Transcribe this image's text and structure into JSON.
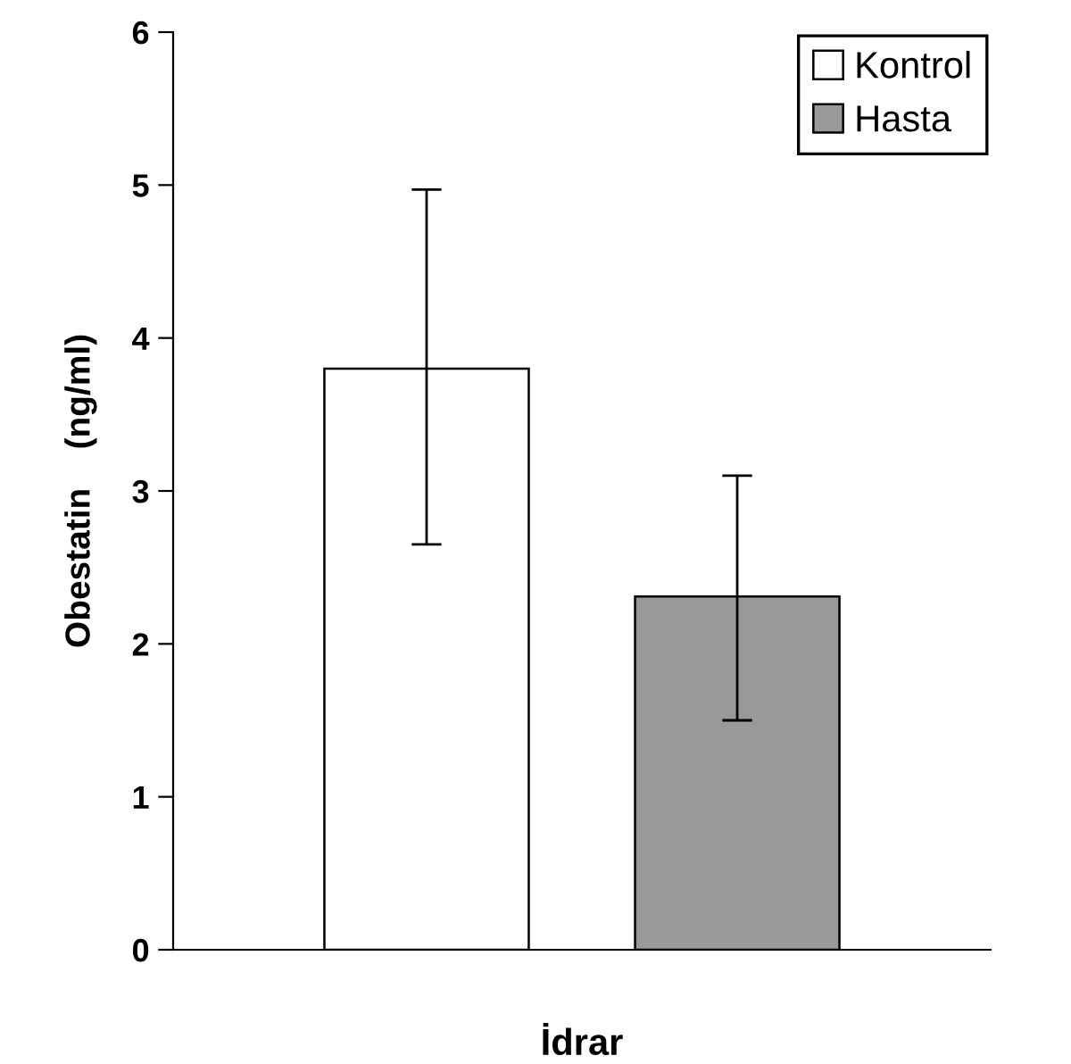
{
  "chart_data": {
    "type": "bar",
    "xlabel": "İdrar",
    "ylabel": "Obestatin    (ng/ml)",
    "categories": [
      null
    ],
    "series": [
      {
        "name": "Kontrol",
        "color": "#ffffff",
        "values": [
          3.8
        ],
        "errors": [
          [
            2.65,
            4.97
          ]
        ]
      },
      {
        "name": "Hasta",
        "color": "#999999",
        "values": [
          2.31
        ],
        "errors": [
          [
            1.5,
            3.1
          ]
        ]
      }
    ],
    "ylim": [
      0,
      6
    ],
    "yticks": [
      0,
      1,
      2,
      3,
      4,
      5,
      6
    ],
    "grid": false,
    "legend": "top right"
  }
}
